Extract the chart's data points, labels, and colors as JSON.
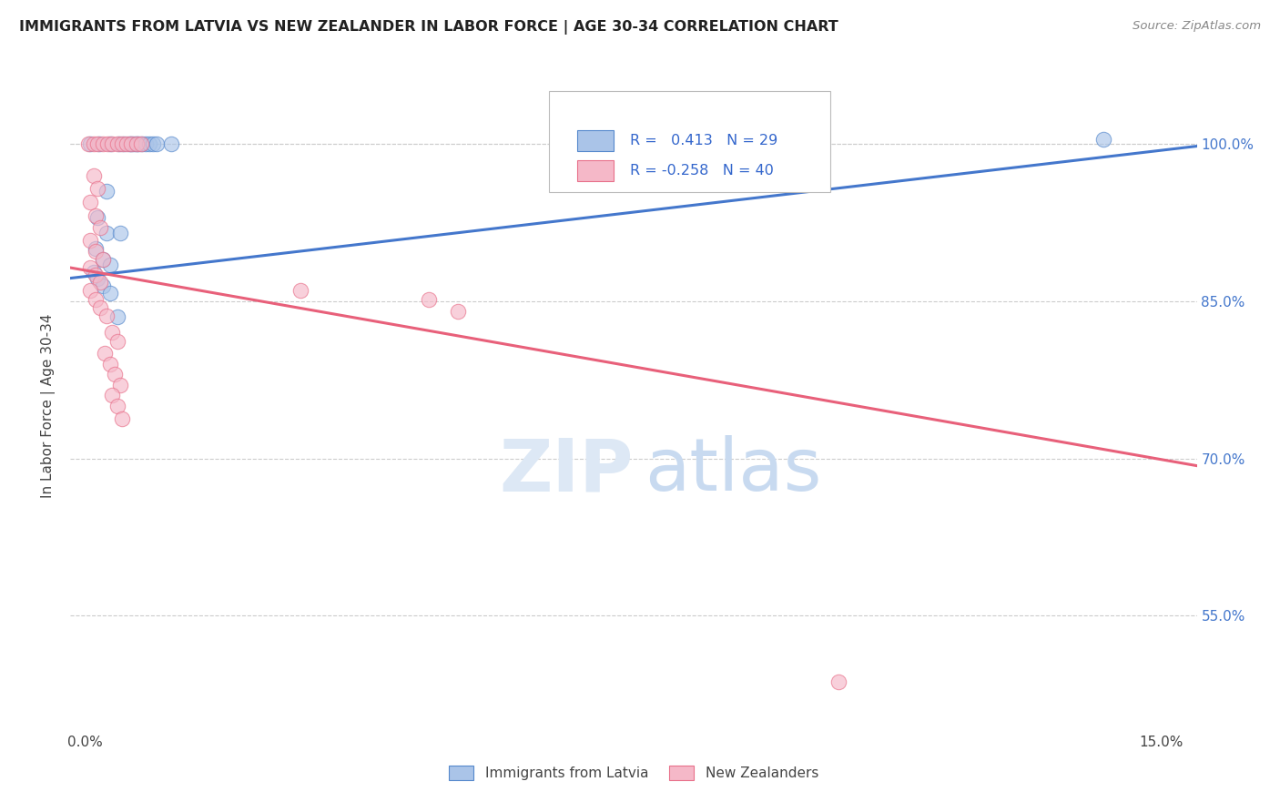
{
  "title": "IMMIGRANTS FROM LATVIA VS NEW ZEALANDER IN LABOR FORCE | AGE 30-34 CORRELATION CHART",
  "source": "Source: ZipAtlas.com",
  "ylabel": "In Labor Force | Age 30-34",
  "y_ticks": [
    0.55,
    0.7,
    0.85,
    1.0
  ],
  "y_tick_labels": [
    "55.0%",
    "70.0%",
    "85.0%",
    "100.0%"
  ],
  "x_ticks": [
    0.0,
    0.025,
    0.05,
    0.075,
    0.1,
    0.125,
    0.15
  ],
  "x_tick_labels": [
    "0.0%",
    "",
    "",
    "",
    "",
    "",
    "15.0%"
  ],
  "xlim": [
    -0.002,
    0.155
  ],
  "ylim": [
    0.44,
    1.06
  ],
  "blue_r": 0.413,
  "blue_n": 29,
  "pink_r": -0.258,
  "pink_n": 40,
  "blue_trend_x": [
    -0.002,
    0.155
  ],
  "blue_trend_y": [
    0.872,
    0.998
  ],
  "pink_trend_x": [
    -0.002,
    0.155
  ],
  "pink_trend_y": [
    0.882,
    0.693
  ],
  "blue_dots": [
    [
      0.0008,
      1.0
    ],
    [
      0.002,
      1.0
    ],
    [
      0.0035,
      1.0
    ],
    [
      0.0048,
      1.0
    ],
    [
      0.0055,
      1.0
    ],
    [
      0.0062,
      1.0
    ],
    [
      0.0065,
      1.0
    ],
    [
      0.0068,
      1.0
    ],
    [
      0.0072,
      1.0
    ],
    [
      0.0075,
      1.0
    ],
    [
      0.008,
      1.0
    ],
    [
      0.0085,
      1.0
    ],
    [
      0.009,
      1.0
    ],
    [
      0.0095,
      1.0
    ],
    [
      0.01,
      1.0
    ],
    [
      0.012,
      1.0
    ],
    [
      0.003,
      0.955
    ],
    [
      0.0018,
      0.93
    ],
    [
      0.003,
      0.915
    ],
    [
      0.005,
      0.915
    ],
    [
      0.0015,
      0.9
    ],
    [
      0.0025,
      0.89
    ],
    [
      0.0035,
      0.885
    ],
    [
      0.0012,
      0.878
    ],
    [
      0.0018,
      0.872
    ],
    [
      0.0025,
      0.865
    ],
    [
      0.0035,
      0.858
    ],
    [
      0.0045,
      0.835
    ],
    [
      0.142,
      1.005
    ]
  ],
  "pink_dots": [
    [
      0.0005,
      1.0
    ],
    [
      0.0012,
      1.0
    ],
    [
      0.0018,
      1.0
    ],
    [
      0.0025,
      1.0
    ],
    [
      0.0032,
      1.0
    ],
    [
      0.0038,
      1.0
    ],
    [
      0.0045,
      1.0
    ],
    [
      0.0052,
      1.0
    ],
    [
      0.0058,
      1.0
    ],
    [
      0.0065,
      1.0
    ],
    [
      0.0072,
      1.0
    ],
    [
      0.0078,
      1.0
    ],
    [
      0.0012,
      0.97
    ],
    [
      0.0018,
      0.958
    ],
    [
      0.0008,
      0.945
    ],
    [
      0.0015,
      0.932
    ],
    [
      0.0022,
      0.92
    ],
    [
      0.0008,
      0.908
    ],
    [
      0.0015,
      0.898
    ],
    [
      0.0025,
      0.89
    ],
    [
      0.0008,
      0.882
    ],
    [
      0.0015,
      0.875
    ],
    [
      0.0022,
      0.868
    ],
    [
      0.0008,
      0.86
    ],
    [
      0.0015,
      0.852
    ],
    [
      0.0022,
      0.844
    ],
    [
      0.003,
      0.836
    ],
    [
      0.0038,
      0.82
    ],
    [
      0.0045,
      0.812
    ],
    [
      0.0028,
      0.8
    ],
    [
      0.0035,
      0.79
    ],
    [
      0.0042,
      0.78
    ],
    [
      0.005,
      0.77
    ],
    [
      0.0038,
      0.76
    ],
    [
      0.0045,
      0.75
    ],
    [
      0.0052,
      0.738
    ],
    [
      0.03,
      0.86
    ],
    [
      0.048,
      0.852
    ],
    [
      0.052,
      0.84
    ],
    [
      0.105,
      0.487
    ]
  ],
  "blue_color": "#aac4e8",
  "pink_color": "#f5b8c8",
  "blue_edge_color": "#5588cc",
  "pink_edge_color": "#e8708a",
  "blue_line_color": "#4477cc",
  "pink_line_color": "#e8607a",
  "background_color": "#FFFFFF",
  "watermark_zip_color": "#dde8f5",
  "watermark_atlas_color": "#c8daf0",
  "legend_label_blue": "Immigrants from Latvia",
  "legend_label_pink": "New Zealanders",
  "dot_size": 140,
  "dot_alpha": 0.65,
  "trend_linewidth": 2.2
}
